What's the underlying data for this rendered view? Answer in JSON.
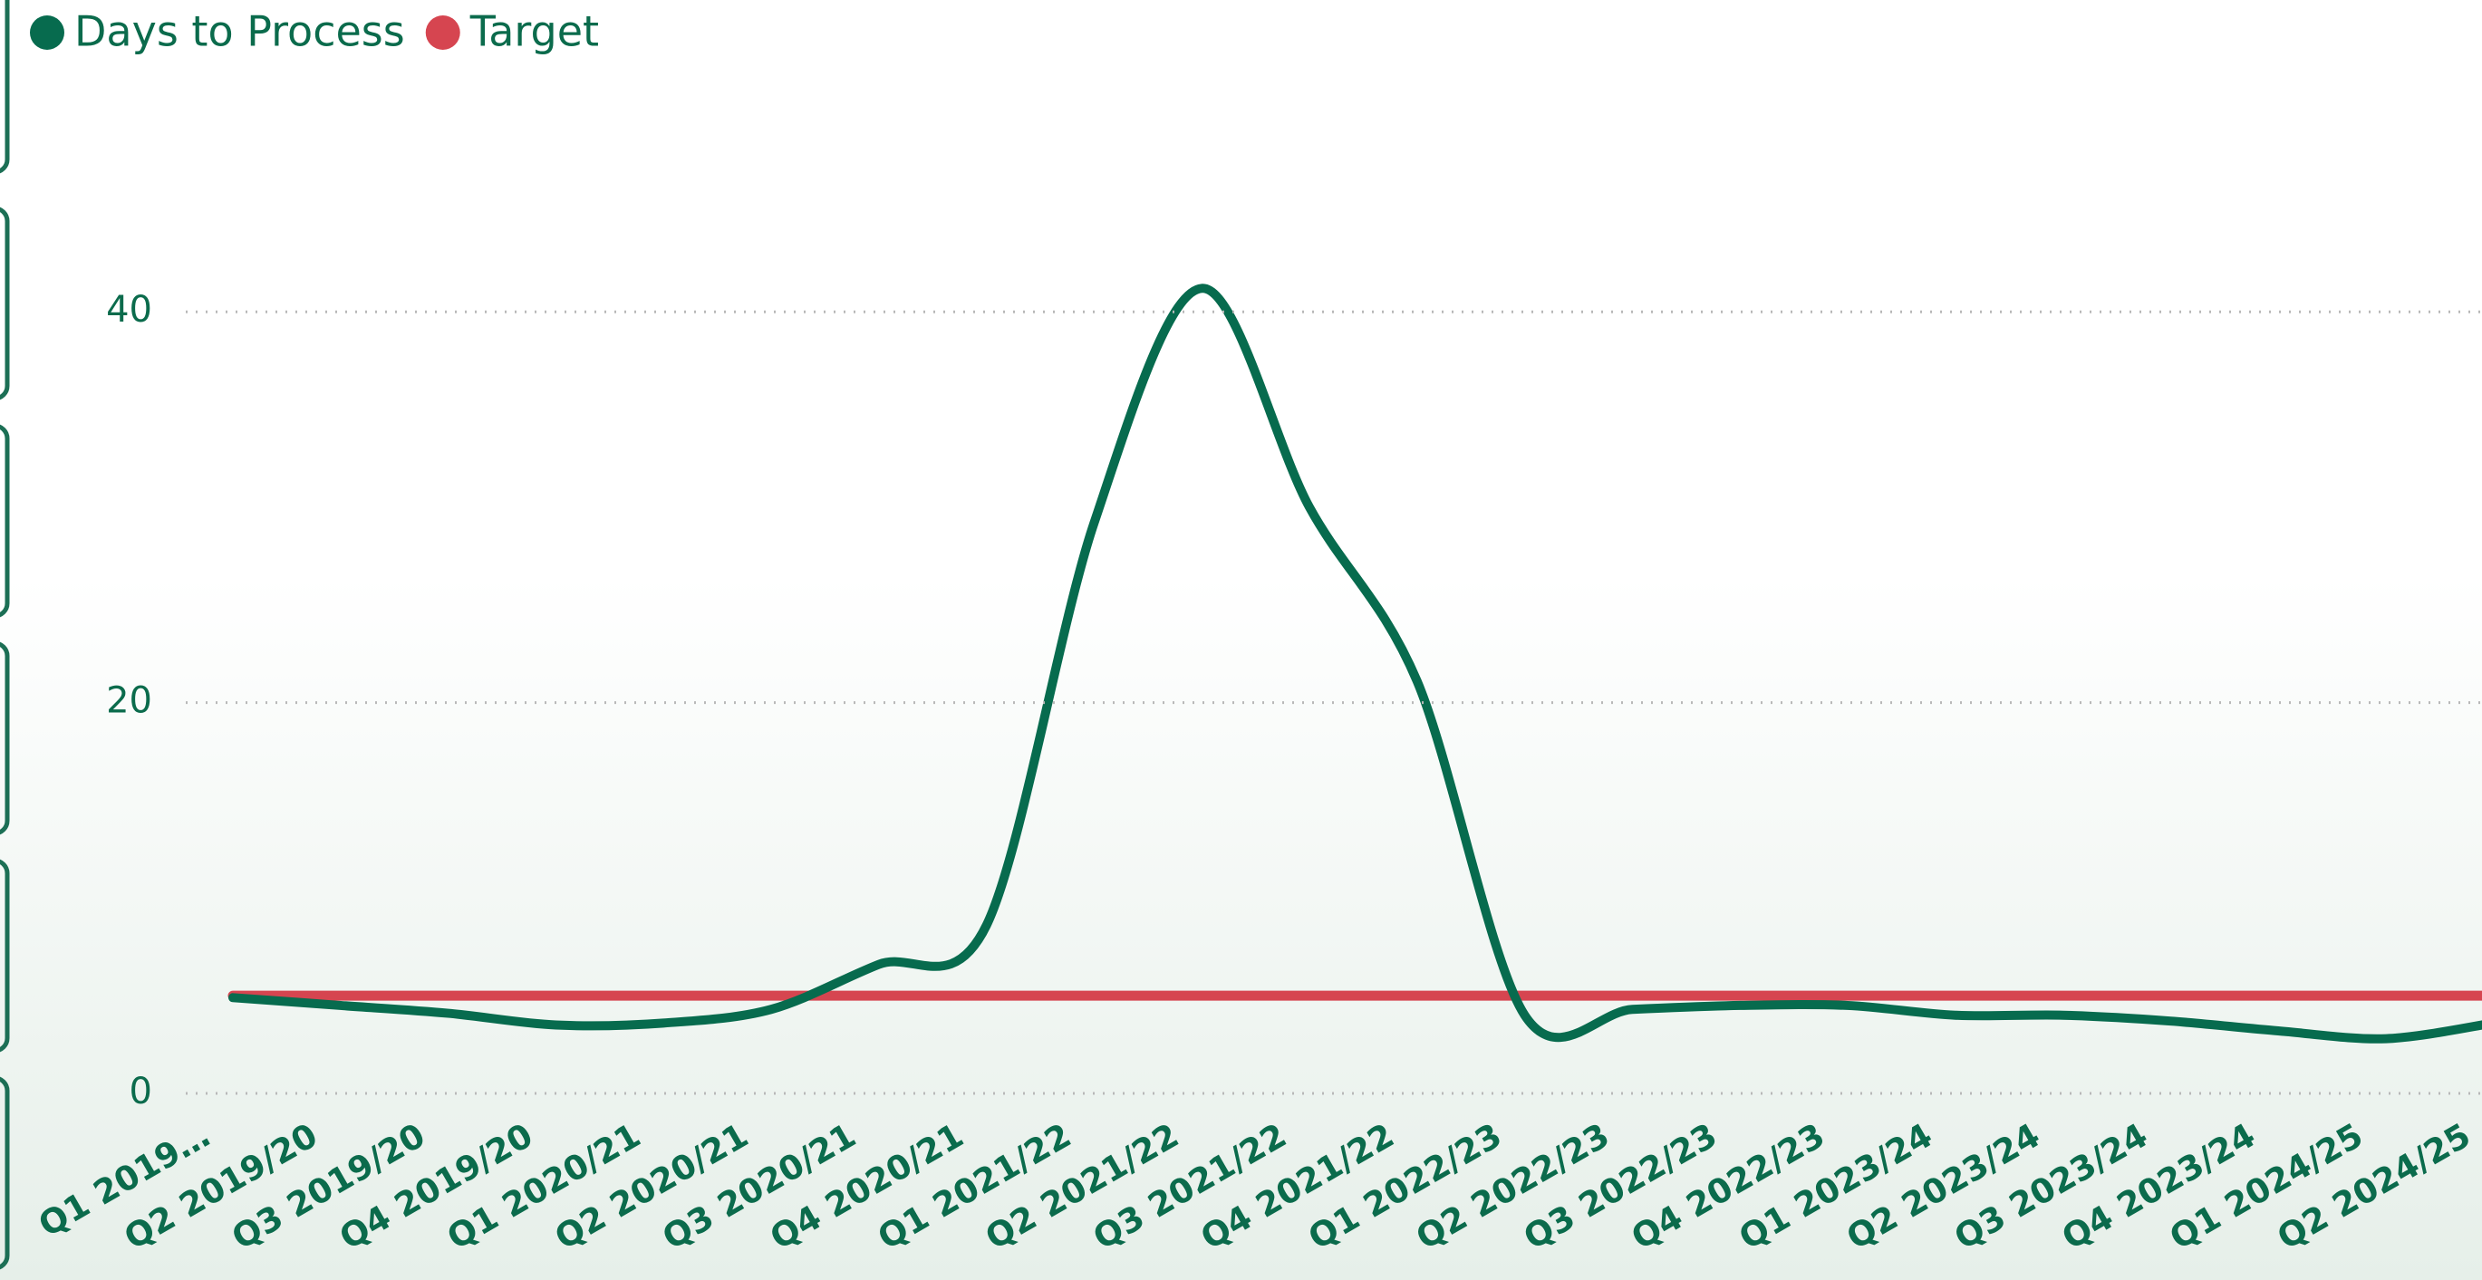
{
  "chart_data": {
    "type": "line",
    "categories": [
      "Q1 2019…",
      "Q2 2019/20",
      "Q3 2019/20",
      "Q4 2019/20",
      "Q1 2020/21",
      "Q2 2020/21",
      "Q3 2020/21",
      "Q4 2020/21",
      "Q1 2021/22",
      "Q2 2021/22",
      "Q3 2021/22",
      "Q4 2021/22",
      "Q1 2022/23",
      "Q2 2022/23",
      "Q3 2022/23",
      "Q4 2022/23",
      "Q1 2023/24",
      "Q2 2023/24",
      "Q3 2023/24",
      "Q4 2023/24",
      "Q1 2024/25",
      "Q2 2024/25"
    ],
    "series": [
      {
        "name": "Days to Process",
        "color": "#076b4e",
        "values": [
          4.9,
          4.5,
          4.1,
          3.5,
          3.6,
          4.3,
          6.6,
          8.6,
          29.2,
          41.2,
          30,
          21.1,
          4.0,
          4.3,
          4.5,
          4.5,
          4.0,
          4.0,
          3.7,
          3.2,
          2.8,
          3.6
        ]
      },
      {
        "name": "Target",
        "color": "#d64550",
        "values": [
          5,
          5,
          5,
          5,
          5,
          5,
          5,
          5,
          5,
          5,
          5,
          5,
          5,
          5,
          5,
          5,
          5,
          5,
          5,
          5,
          5,
          5
        ]
      }
    ],
    "ylim": [
      0,
      48
    ],
    "yticks": [
      0,
      20,
      40
    ],
    "grid": true,
    "legend": "top-left"
  }
}
